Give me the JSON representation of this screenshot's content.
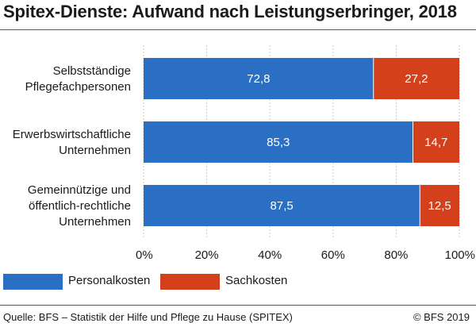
{
  "title": "Spitex-Dienste: Aufwand nach Leistungserbringer, 2018",
  "source": "Quelle: BFS – Statistik der Hilfe und Pflege zu Hause (SPITEX)",
  "copyright": "© BFS 2019",
  "colors": {
    "personal": "#2a6fc4",
    "sach": "#d4401c",
    "text": "#1a1a1a"
  },
  "chart_data": {
    "type": "bar",
    "orientation": "horizontal",
    "stacked": true,
    "categories": [
      [
        "Selbstständige",
        "Pflegefachpersonen"
      ],
      [
        "Erwerbswirtschaftliche",
        "Unternehmen"
      ],
      [
        "Gemeinnützige und",
        "öffentlich-rechtliche",
        "Unternehmen"
      ]
    ],
    "series": [
      {
        "name": "Personalkosten",
        "values": [
          72.8,
          85.3,
          87.5
        ],
        "labels": [
          "72,8",
          "85,3",
          "87,5"
        ]
      },
      {
        "name": "Sachkosten",
        "values": [
          27.2,
          14.7,
          12.5
        ],
        "labels": [
          "27,2",
          "14,7",
          "12,5"
        ]
      }
    ],
    "xlim": [
      0,
      100
    ],
    "xticks": [
      0,
      20,
      40,
      60,
      80,
      100
    ],
    "xtick_labels": [
      "0%",
      "20%",
      "40%",
      "60%",
      "80%",
      "100%"
    ],
    "grid": true,
    "legend": "bottom"
  }
}
